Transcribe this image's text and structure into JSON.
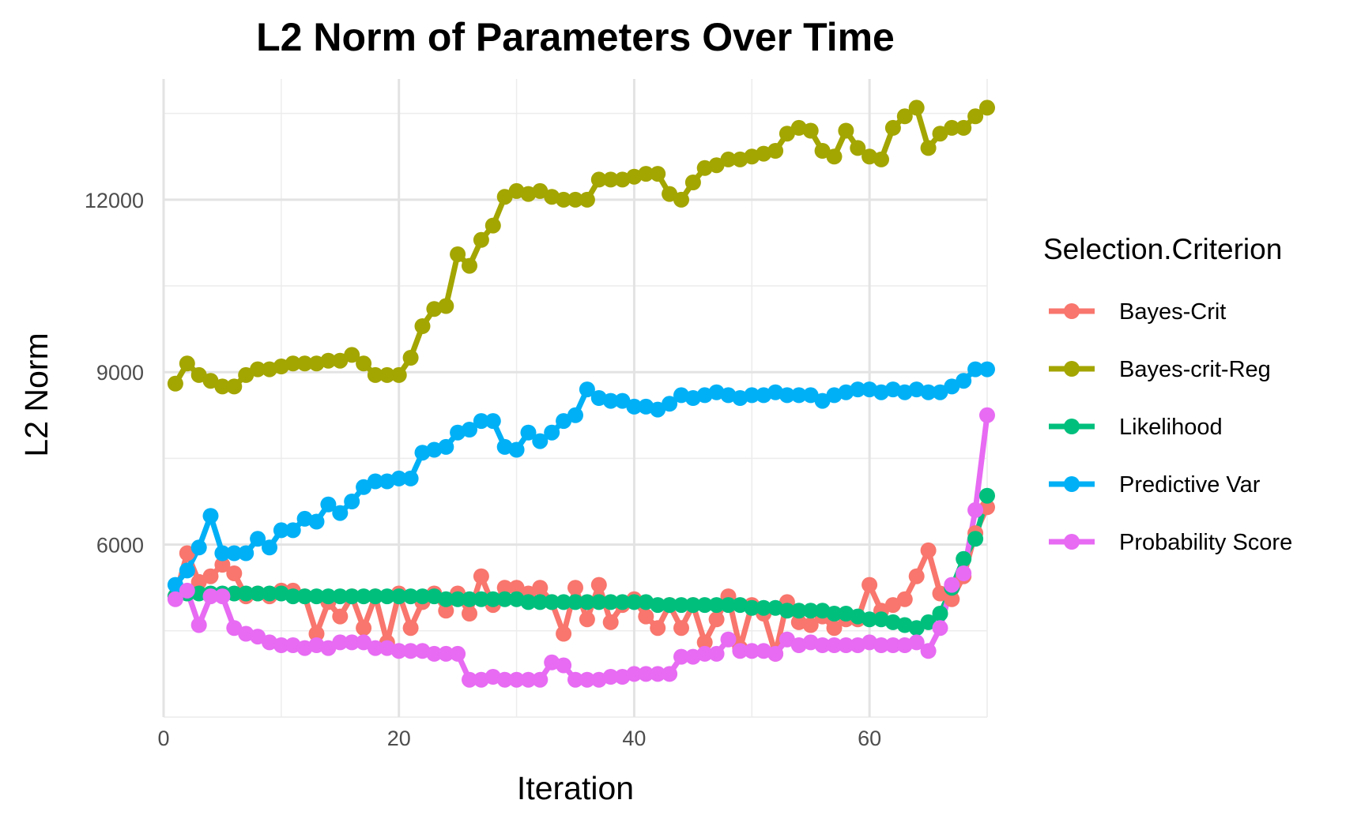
{
  "chart_data": {
    "type": "line",
    "title": "L2 Norm of Parameters Over Time",
    "xlabel": "Iteration",
    "ylabel": "L2 Norm",
    "xlim": [
      0,
      70
    ],
    "ylim": [
      3000,
      14100
    ],
    "x_ticks": [
      0,
      20,
      40,
      60
    ],
    "y_ticks": [
      6000,
      9000,
      12000
    ],
    "grid": true,
    "legend_title": "Selection.Criterion",
    "legend_position": "right",
    "x": [
      1,
      2,
      3,
      4,
      5,
      6,
      7,
      8,
      9,
      10,
      11,
      12,
      13,
      14,
      15,
      16,
      17,
      18,
      19,
      20,
      21,
      22,
      23,
      24,
      25,
      26,
      27,
      28,
      29,
      30,
      31,
      32,
      33,
      34,
      35,
      36,
      37,
      38,
      39,
      40,
      41,
      42,
      43,
      44,
      45,
      46,
      47,
      48,
      49,
      50,
      51,
      52,
      53,
      54,
      55,
      56,
      57,
      58,
      59,
      60,
      61,
      62,
      63,
      64,
      65,
      66,
      67,
      68,
      69,
      70
    ],
    "series": [
      {
        "name": "Bayes-Crit",
        "color": "#F8766D",
        "values": [
          5100,
          5850,
          5350,
          5450,
          5650,
          5500,
          5100,
          5150,
          5100,
          5200,
          5200,
          5100,
          4450,
          5000,
          4750,
          5100,
          4550,
          5100,
          4300,
          5150,
          4550,
          5000,
          5150,
          4850,
          5150,
          4800,
          5450,
          4950,
          5250,
          5250,
          5150,
          5250,
          5000,
          4450,
          5250,
          4700,
          5300,
          4650,
          4950,
          5050,
          4750,
          4550,
          4950,
          4550,
          4950,
          4300,
          4700,
          5100,
          4200,
          4950,
          4800,
          4100,
          5000,
          4650,
          4600,
          4750,
          4550,
          4700,
          4700,
          5300,
          4850,
          4950,
          5050,
          5450,
          5900,
          5150,
          5050,
          5450,
          6200,
          6650
        ]
      },
      {
        "name": "Bayes-crit-Reg",
        "color": "#A3A500",
        "values": [
          8800,
          9150,
          8950,
          8850,
          8750,
          8750,
          8950,
          9050,
          9050,
          9100,
          9150,
          9150,
          9150,
          9200,
          9200,
          9300,
          9150,
          8950,
          8950,
          8950,
          9250,
          9800,
          10100,
          10150,
          11050,
          10850,
          11300,
          11550,
          12050,
          12150,
          12100,
          12150,
          12050,
          12000,
          12000,
          12000,
          12350,
          12350,
          12350,
          12400,
          12450,
          12450,
          12100,
          12000,
          12300,
          12550,
          12600,
          12700,
          12700,
          12750,
          12800,
          12850,
          13150,
          13250,
          13200,
          12850,
          12750,
          13200,
          12900,
          12750,
          12700,
          13250,
          13450,
          13600,
          12900,
          13150,
          13250,
          13250,
          13450,
          13600
        ]
      },
      {
        "name": "Likelihood",
        "color": "#00BF7D",
        "values": [
          5100,
          5150,
          5150,
          5150,
          5150,
          5150,
          5150,
          5150,
          5150,
          5150,
          5100,
          5100,
          5100,
          5100,
          5100,
          5100,
          5100,
          5100,
          5100,
          5100,
          5100,
          5100,
          5100,
          5050,
          5050,
          5050,
          5050,
          5050,
          5050,
          5050,
          5000,
          5000,
          5000,
          5000,
          5000,
          5000,
          5000,
          5000,
          5000,
          5000,
          5000,
          4950,
          4950,
          4950,
          4950,
          4950,
          4950,
          4950,
          4950,
          4900,
          4900,
          4900,
          4850,
          4850,
          4850,
          4850,
          4800,
          4800,
          4750,
          4700,
          4700,
          4650,
          4600,
          4550,
          4650,
          4800,
          5250,
          5750,
          6100,
          6850
        ]
      },
      {
        "name": "Predictive Var",
        "color": "#00B0F6",
        "values": [
          5300,
          5550,
          5950,
          6500,
          5850,
          5850,
          5850,
          6100,
          5950,
          6250,
          6250,
          6450,
          6400,
          6700,
          6550,
          6750,
          7000,
          7100,
          7100,
          7150,
          7150,
          7600,
          7650,
          7700,
          7950,
          8000,
          8150,
          8150,
          7700,
          7650,
          7950,
          7800,
          7950,
          8150,
          8250,
          8700,
          8550,
          8500,
          8500,
          8400,
          8400,
          8350,
          8450,
          8600,
          8550,
          8600,
          8650,
          8600,
          8550,
          8600,
          8600,
          8650,
          8600,
          8600,
          8600,
          8500,
          8600,
          8650,
          8700,
          8700,
          8650,
          8700,
          8650,
          8700,
          8650,
          8650,
          8750,
          8850,
          9050,
          9050
        ]
      },
      {
        "name": "Probability Score",
        "color": "#E76BF3",
        "values": [
          5050,
          5200,
          4600,
          5100,
          5100,
          4550,
          4450,
          4400,
          4300,
          4250,
          4250,
          4200,
          4250,
          4200,
          4300,
          4300,
          4300,
          4200,
          4200,
          4150,
          4150,
          4150,
          4100,
          4100,
          4100,
          3650,
          3650,
          3700,
          3650,
          3650,
          3650,
          3650,
          3950,
          3900,
          3650,
          3650,
          3650,
          3700,
          3700,
          3750,
          3750,
          3750,
          3750,
          4050,
          4050,
          4100,
          4100,
          4350,
          4150,
          4150,
          4150,
          4100,
          4350,
          4250,
          4300,
          4250,
          4250,
          4250,
          4250,
          4300,
          4250,
          4250,
          4250,
          4300,
          4150,
          4550,
          5300,
          5500,
          6600,
          8250
        ]
      }
    ]
  }
}
